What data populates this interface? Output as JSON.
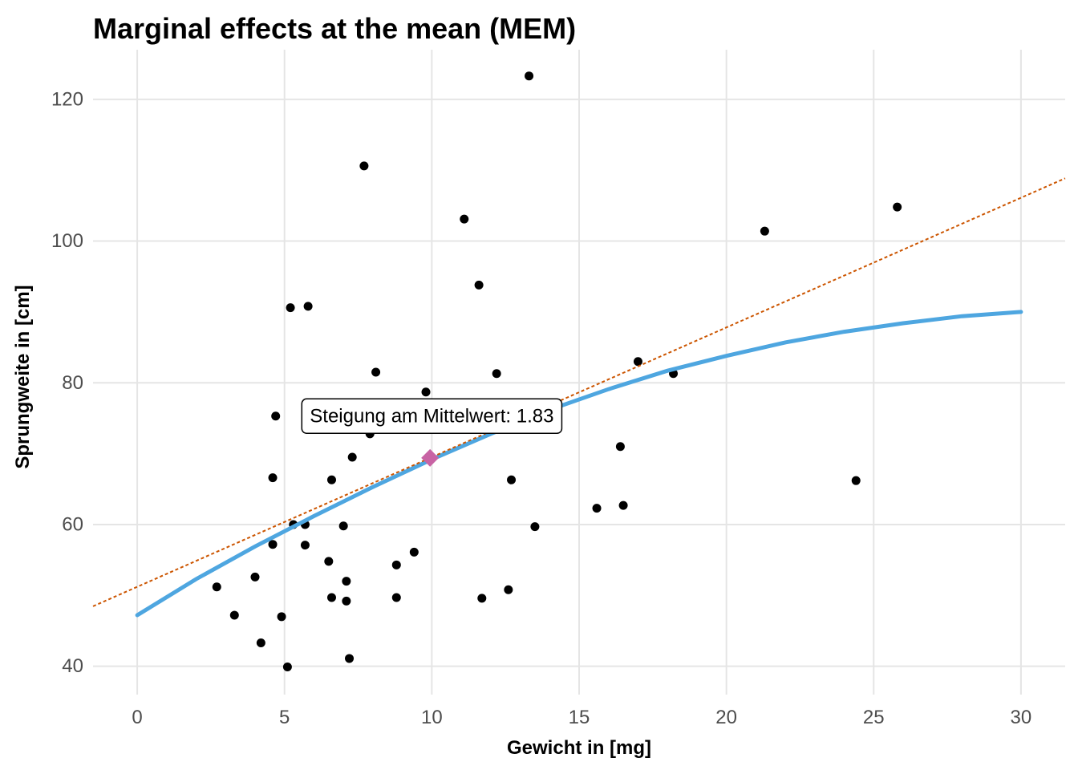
{
  "chart_data": {
    "type": "scatter",
    "title": "Marginal effects at the mean (MEM)",
    "xlabel": "Gewicht in [mg]",
    "ylabel": "Sprungweite in [cm]",
    "xlim": [
      -1.5,
      31.5
    ],
    "ylim": [
      36,
      127
    ],
    "x_ticks": [
      0,
      5,
      10,
      15,
      20,
      25,
      30
    ],
    "y_ticks": [
      40,
      60,
      80,
      100,
      120
    ],
    "grid": true,
    "points": [
      {
        "x": 2.7,
        "y": 51.2
      },
      {
        "x": 3.3,
        "y": 47.2
      },
      {
        "x": 4.0,
        "y": 52.6
      },
      {
        "x": 4.2,
        "y": 43.3
      },
      {
        "x": 4.6,
        "y": 66.6
      },
      {
        "x": 4.6,
        "y": 57.2
      },
      {
        "x": 4.7,
        "y": 75.3
      },
      {
        "x": 4.9,
        "y": 47.0
      },
      {
        "x": 5.1,
        "y": 39.9
      },
      {
        "x": 5.2,
        "y": 90.6
      },
      {
        "x": 5.3,
        "y": 60.0
      },
      {
        "x": 5.7,
        "y": 60.0
      },
      {
        "x": 5.7,
        "y": 57.1
      },
      {
        "x": 5.8,
        "y": 90.8
      },
      {
        "x": 6.5,
        "y": 54.8
      },
      {
        "x": 6.6,
        "y": 66.3
      },
      {
        "x": 6.6,
        "y": 49.7
      },
      {
        "x": 7.0,
        "y": 59.8
      },
      {
        "x": 7.1,
        "y": 52.0
      },
      {
        "x": 7.1,
        "y": 49.2
      },
      {
        "x": 7.2,
        "y": 41.1
      },
      {
        "x": 7.3,
        "y": 69.5
      },
      {
        "x": 7.7,
        "y": 110.6
      },
      {
        "x": 7.9,
        "y": 72.8
      },
      {
        "x": 8.1,
        "y": 81.5
      },
      {
        "x": 8.8,
        "y": 54.3
      },
      {
        "x": 8.8,
        "y": 49.7
      },
      {
        "x": 9.4,
        "y": 56.1
      },
      {
        "x": 9.8,
        "y": 78.7
      },
      {
        "x": 11.1,
        "y": 103.1
      },
      {
        "x": 11.6,
        "y": 93.8
      },
      {
        "x": 11.7,
        "y": 49.6
      },
      {
        "x": 12.2,
        "y": 81.3
      },
      {
        "x": 12.6,
        "y": 50.8
      },
      {
        "x": 12.7,
        "y": 66.3
      },
      {
        "x": 13.3,
        "y": 123.3
      },
      {
        "x": 13.5,
        "y": 59.7
      },
      {
        "x": 15.6,
        "y": 62.3
      },
      {
        "x": 16.4,
        "y": 71.0
      },
      {
        "x": 16.5,
        "y": 62.7
      },
      {
        "x": 17.0,
        "y": 83.0
      },
      {
        "x": 18.2,
        "y": 81.3
      },
      {
        "x": 21.3,
        "y": 101.4
      },
      {
        "x": 24.4,
        "y": 66.2
      },
      {
        "x": 25.8,
        "y": 104.8
      }
    ],
    "fit_curve": {
      "color": "#4ea6e0",
      "x": [
        0,
        2,
        4,
        6,
        8,
        10,
        12,
        14,
        16,
        18,
        20,
        22,
        24,
        26,
        28,
        30
      ],
      "y": [
        47.2,
        52.3,
        56.9,
        61.2,
        65.3,
        69.2,
        72.8,
        76.2,
        79.1,
        81.7,
        83.8,
        85.7,
        87.2,
        88.4,
        89.4,
        90.0
      ]
    },
    "tangent_line": {
      "color": "#cc5500",
      "style": "dotted",
      "slope": 1.83,
      "x0": 9.94,
      "y0": 69.4
    },
    "mean_point": {
      "x": 9.94,
      "y": 69.4,
      "color": "#c863a4",
      "shape": "diamond"
    },
    "annotation": {
      "text": "Steigung am Mittelwert: 1.83",
      "x": 10.0,
      "y": 75.3
    }
  }
}
